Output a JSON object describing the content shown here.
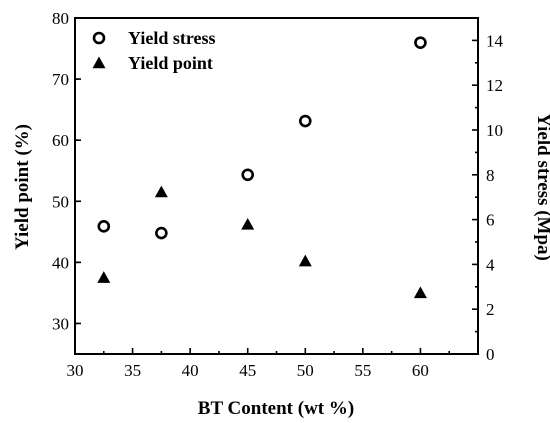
{
  "chart_data": {
    "type": "scatter",
    "title": "",
    "xlabel": "BT Content (wt %)",
    "ylabel_left": "Yield point (%)",
    "ylabel_right": "Yield stress (Mpa)",
    "xlim": [
      30,
      65
    ],
    "ylim_left": [
      25,
      80
    ],
    "ylim_right": [
      0,
      15
    ],
    "x_ticks": [
      30,
      35,
      40,
      45,
      50,
      55,
      60
    ],
    "y_left_ticks": [
      30,
      40,
      50,
      60,
      70,
      80
    ],
    "y_right_ticks": [
      0,
      2,
      4,
      6,
      8,
      10,
      12,
      14
    ],
    "grid": false,
    "legend_position": "top-left",
    "series": [
      {
        "name": "Yield stress",
        "axis": "right",
        "marker": "open-circle",
        "color": "#000000",
        "points": [
          {
            "x": 32.5,
            "y": 5.7
          },
          {
            "x": 37.5,
            "y": 5.4
          },
          {
            "x": 45,
            "y": 8.0
          },
          {
            "x": 50,
            "y": 10.4
          },
          {
            "x": 60,
            "y": 13.9
          }
        ]
      },
      {
        "name": "Yield point",
        "axis": "left",
        "marker": "filled-triangle",
        "color": "#000000",
        "points": [
          {
            "x": 32.5,
            "y": 37.5
          },
          {
            "x": 37.5,
            "y": 51.5
          },
          {
            "x": 45,
            "y": 46.2
          },
          {
            "x": 50,
            "y": 40.2
          },
          {
            "x": 60,
            "y": 35.0
          }
        ]
      }
    ]
  }
}
